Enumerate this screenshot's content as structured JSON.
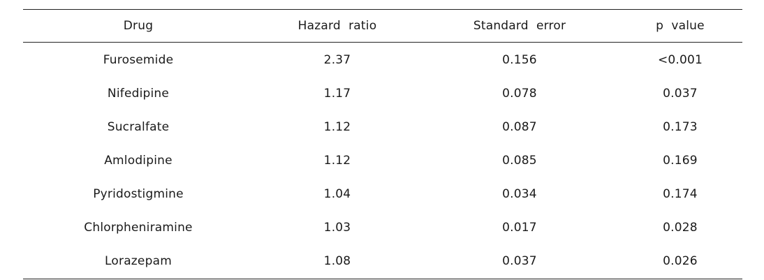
{
  "table": {
    "headers": [
      "Drug",
      "Hazard  ratio",
      "Standard  error",
      "p  value"
    ],
    "rows": [
      [
        "Furosemide",
        "2.37",
        "0.156",
        "<0.001"
      ],
      [
        "Nifedipine",
        "1.17",
        "0.078",
        "0.037"
      ],
      [
        "Sucralfate",
        "1.12",
        "0.087",
        "0.173"
      ],
      [
        "Amlodipine",
        "1.12",
        "0.085",
        "0.169"
      ],
      [
        "Pyridostigmine",
        "1.04",
        "0.034",
        "0.174"
      ],
      [
        "Chlorpheniramine",
        "1.03",
        "0.017",
        "0.028"
      ],
      [
        "Lorazepam",
        "1.08",
        "0.037",
        "0.026"
      ]
    ]
  }
}
